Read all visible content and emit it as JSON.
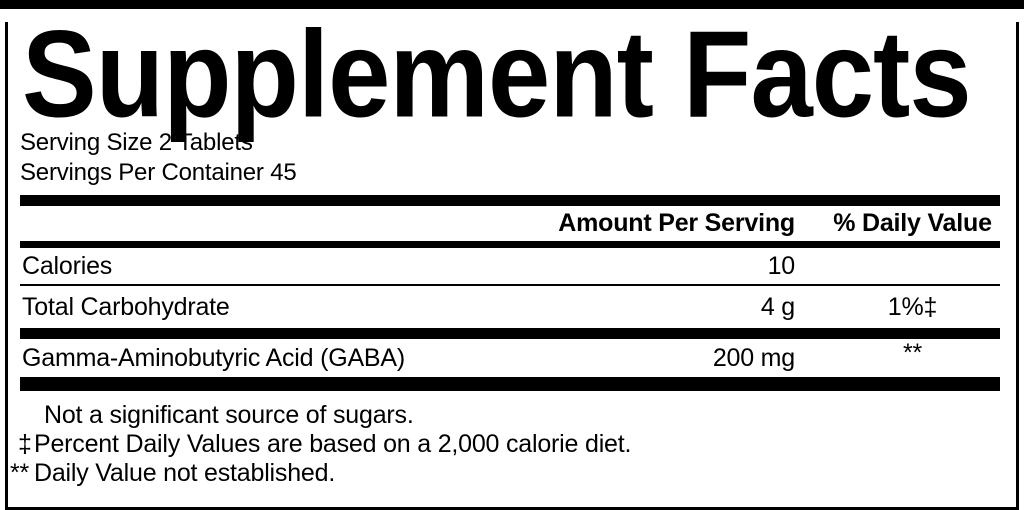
{
  "label": {
    "title": "Supplement Facts",
    "serving": {
      "size": "Serving Size 2 Tablets",
      "per_container": "Servings Per Container 45"
    },
    "table": {
      "header": {
        "amount": "Amount Per Serving",
        "daily_value": "% Daily Value"
      },
      "rows": [
        {
          "name": "Calories",
          "amount": "10",
          "daily_value": ""
        },
        {
          "name": "Total Carbohydrate",
          "amount": "4 g",
          "daily_value": "1%‡"
        },
        {
          "name": "Gamma-Aminobutyric Acid (GABA)",
          "amount": "200 mg",
          "daily_value": "**"
        }
      ]
    },
    "footnotes": [
      {
        "marker": "",
        "text": "Not a significant source of sugars."
      },
      {
        "marker": "‡",
        "text": "Percent Daily Values are based on a 2,000 calorie diet."
      },
      {
        "marker": "**",
        "text": "Daily Value not established."
      }
    ],
    "colors": {
      "ink": "#000000",
      "background": "#ffffff"
    }
  }
}
